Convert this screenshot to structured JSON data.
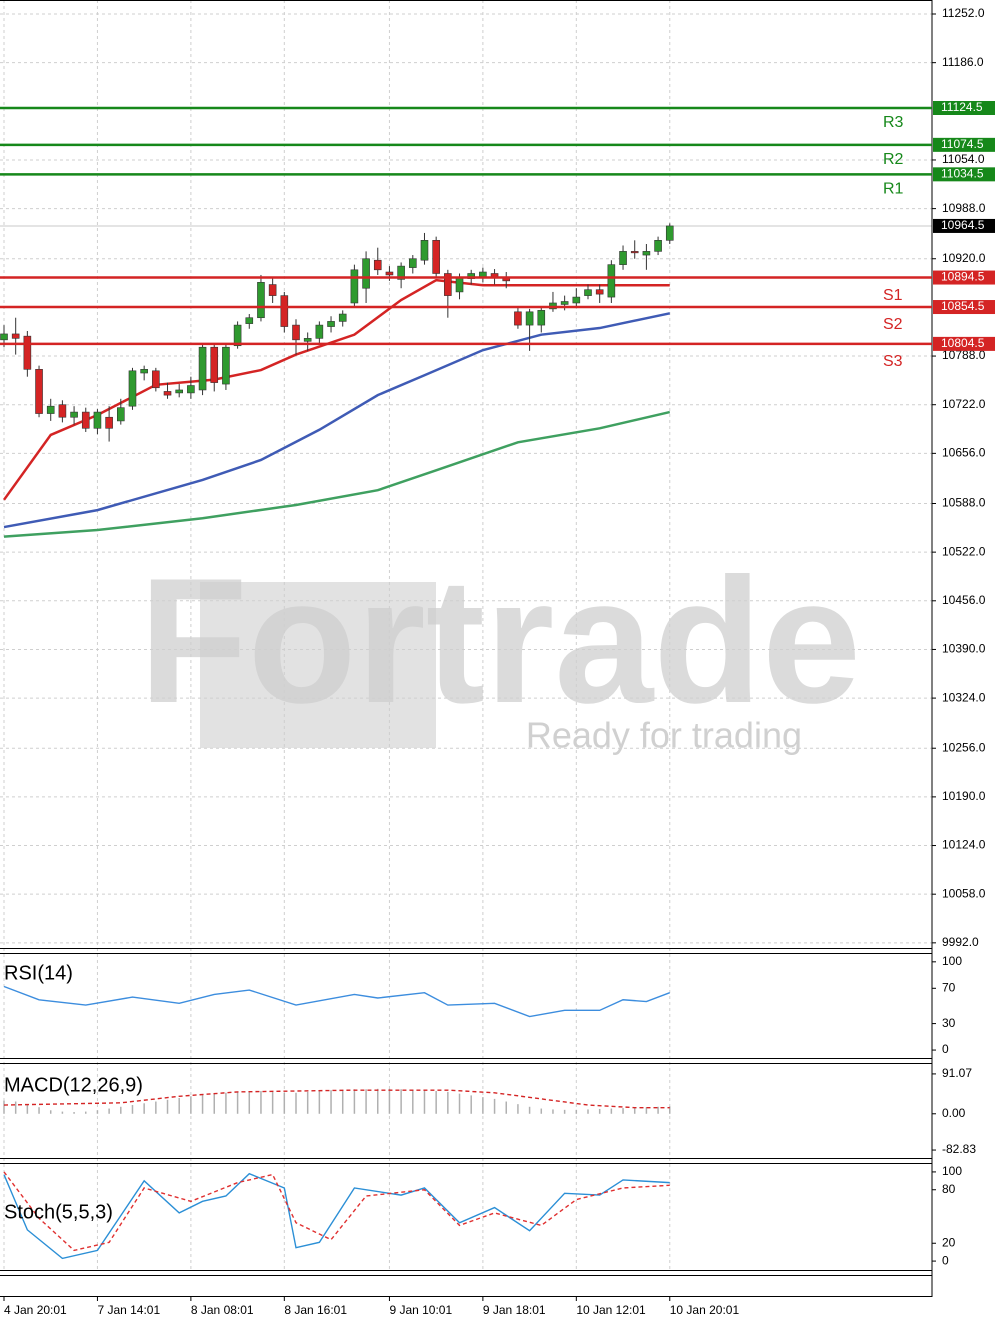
{
  "chart_data": [
    {
      "type": "candlestick",
      "watermark": {
        "title": "Fortrade",
        "subtitle": "Ready for trading"
      },
      "ylim": [
        9985,
        11271
      ],
      "yticks": [
        {
          "value": 11252,
          "label": "11252.0"
        },
        {
          "value": 11186,
          "label": "11186.0"
        },
        {
          "value": 11054,
          "label": "11054.0"
        },
        {
          "value": 10988,
          "label": "10988.0"
        },
        {
          "value": 10920,
          "label": "10920.0"
        },
        {
          "value": 10788,
          "label": "10788.0"
        },
        {
          "value": 10722,
          "label": "10722.0"
        },
        {
          "value": 10656,
          "label": "10656.0"
        },
        {
          "value": 10588,
          "label": "10588.0"
        },
        {
          "value": 10522,
          "label": "10522.0"
        },
        {
          "value": 10456,
          "label": "10456.0"
        },
        {
          "value": 10390,
          "label": "10390.0"
        },
        {
          "value": 10324,
          "label": "10324.0"
        },
        {
          "value": 10256,
          "label": "10256.0"
        },
        {
          "value": 10190,
          "label": "10190.0"
        },
        {
          "value": 10124,
          "label": "10124.0"
        },
        {
          "value": 10058,
          "label": "10058.0"
        },
        {
          "value": 9992,
          "label": "9992.0"
        }
      ],
      "xticks": [
        {
          "value": 0,
          "label": "4 Jan 20:01"
        },
        {
          "value": 8,
          "label": "7 Jan 14:01"
        },
        {
          "value": 16,
          "label": "8 Jan 08:01"
        },
        {
          "value": 24,
          "label": "8 Jan 16:01"
        },
        {
          "value": 33,
          "label": "9 Jan 10:01"
        },
        {
          "value": 41,
          "label": "9 Jan 18:01"
        },
        {
          "value": 49,
          "label": "10 Jan 12:01"
        },
        {
          "value": 57,
          "label": "10 Jan 20:01"
        }
      ],
      "grid": true,
      "up_color": "#2f9a2f",
      "down_color": "#d42424",
      "open": [
        10810,
        10818,
        10815,
        10770,
        10710,
        10722,
        10705,
        10712,
        10690,
        10705,
        10700,
        10720,
        10765,
        10768,
        10740,
        10738,
        10738,
        10742,
        10800,
        10750,
        10802,
        10832,
        10840,
        10885,
        10870,
        10830,
        10808,
        10812,
        10828,
        10835,
        10860,
        10880,
        10918,
        10902,
        10892,
        10908,
        10918,
        10945,
        10900,
        10875,
        10893,
        10895,
        10900,
        10895,
        10848,
        10830,
        10830,
        10852,
        10858,
        10860,
        10870,
        10878,
        10868,
        10912,
        10930,
        10925,
        10930,
        10945
      ],
      "close": [
        10818,
        10812,
        10770,
        10710,
        10720,
        10705,
        10712,
        10690,
        10712,
        10690,
        10718,
        10768,
        10770,
        10745,
        10735,
        10742,
        10748,
        10800,
        10752,
        10800,
        10830,
        10840,
        10888,
        10870,
        10828,
        10810,
        10812,
        10830,
        10835,
        10845,
        10905,
        10920,
        10905,
        10898,
        10910,
        10920,
        10945,
        10900,
        10870,
        10895,
        10900,
        10902,
        10895,
        10890,
        10830,
        10848,
        10850,
        10860,
        10862,
        10868,
        10878,
        10872,
        10912,
        10930,
        10928,
        10930,
        10945,
        10964.5
      ],
      "high": [
        10830,
        10840,
        10822,
        10775,
        10730,
        10728,
        10720,
        10718,
        10716,
        10720,
        10730,
        10772,
        10775,
        10772,
        10752,
        10750,
        10760,
        10805,
        10805,
        10805,
        10835,
        10845,
        10898,
        10895,
        10875,
        10838,
        10820,
        10835,
        10842,
        10850,
        10912,
        10930,
        10935,
        10910,
        10915,
        10925,
        10955,
        10950,
        10905,
        10900,
        10905,
        10908,
        10906,
        10902,
        10855,
        10852,
        10855,
        10875,
        10870,
        10880,
        10885,
        10885,
        10918,
        10938,
        10945,
        10940,
        10950,
        10968
      ],
      "low": [
        10800,
        10790,
        10760,
        10705,
        10700,
        10698,
        10695,
        10685,
        10682,
        10672,
        10695,
        10715,
        10755,
        10740,
        10730,
        10732,
        10730,
        10735,
        10740,
        10742,
        10798,
        10825,
        10835,
        10860,
        10820,
        10790,
        10795,
        10805,
        10820,
        10828,
        10855,
        10860,
        10898,
        10890,
        10880,
        10900,
        10912,
        10895,
        10840,
        10865,
        10885,
        10888,
        10885,
        10880,
        10825,
        10795,
        10820,
        10848,
        10850,
        10855,
        10865,
        10860,
        10860,
        10905,
        10920,
        10905,
        10925,
        10940
      ],
      "overlays": [
        {
          "color": "#d42424",
          "x": [
            0,
            4,
            8,
            13,
            18,
            22,
            25,
            30,
            34,
            37,
            41,
            46,
            51,
            57
          ],
          "values": [
            10593,
            10681,
            10708,
            10749,
            10756,
            10769,
            10790,
            10817,
            10864,
            10891,
            10884,
            10884,
            10884,
            10884
          ]
        },
        {
          "color": "#3f5bb5",
          "x": [
            0,
            8,
            17,
            22,
            27,
            32,
            36,
            41,
            46,
            51,
            57
          ],
          "values": [
            10556,
            10579,
            10620,
            10647,
            10688,
            10735,
            10762,
            10796,
            10817,
            10826,
            10846
          ]
        },
        {
          "color": "#3fa060",
          "x": [
            0,
            8,
            17,
            25,
            32,
            37,
            44,
            51,
            57
          ],
          "values": [
            10543,
            10552,
            10568,
            10586,
            10606,
            10633,
            10671,
            10690,
            10712
          ]
        }
      ],
      "levels": [
        {
          "label": "R3",
          "value": 11124.5,
          "color": "#16881a"
        },
        {
          "label": "R2",
          "value": 11074.5,
          "color": "#16881a"
        },
        {
          "label": "R1",
          "value": 11034.5,
          "color": "#16881a"
        },
        {
          "label": "S1",
          "value": 10894.5,
          "color": "#d42424"
        },
        {
          "label": "S2",
          "value": 10854.5,
          "color": "#d42424"
        },
        {
          "label": "S3",
          "value": 10804.5,
          "color": "#d42424"
        }
      ],
      "last_price": 10964.5
    },
    {
      "type": "line",
      "title": "RSI(14)",
      "ylim": [
        -9,
        110
      ],
      "yticks": [
        100,
        70,
        30,
        0
      ],
      "series": [
        {
          "color": "#3c8dde",
          "x": [
            0,
            3,
            7,
            11,
            15,
            18,
            21,
            25,
            30,
            32,
            36,
            38,
            42,
            45,
            48,
            51,
            53,
            55,
            57
          ],
          "values": [
            72,
            57,
            51,
            60,
            53,
            63,
            68,
            51,
            63,
            59,
            65,
            51,
            53,
            38,
            45,
            45,
            57,
            55,
            65
          ]
        }
      ]
    },
    {
      "type": "macd",
      "title": "MACD(12,26,9)",
      "ylim": [
        -101,
        116
      ],
      "yticks": [
        91.07,
        {
          "value": 0,
          "label": "0.00"
        },
        -82.83
      ],
      "histogram": {
        "color": "#b0b0b0",
        "values": [
          30,
          28,
          22,
          15,
          8,
          5,
          4,
          5,
          8,
          12,
          16,
          20,
          24,
          28,
          32,
          36,
          40,
          44,
          46,
          48,
          50,
          52,
          52,
          50,
          48,
          48,
          50,
          52,
          54,
          55,
          56,
          56,
          57,
          57,
          56,
          55,
          54,
          52,
          50,
          46,
          42,
          38,
          34,
          28,
          22,
          16,
          12,
          10,
          9,
          9,
          10,
          11,
          12,
          13,
          14,
          15,
          16,
          17
        ]
      },
      "series": [
        {
          "color": "#d42424",
          "dashed": true,
          "x": [
            0,
            10,
            15,
            20,
            30,
            38,
            42,
            46,
            50,
            54,
            57
          ],
          "values": [
            20,
            25,
            40,
            50,
            54,
            54,
            48,
            34,
            20,
            14,
            14
          ]
        }
      ]
    },
    {
      "type": "line",
      "title": "Stoch(5,5,3)",
      "ylim": [
        -10,
        110
      ],
      "yticks": [
        100,
        80,
        20,
        0
      ],
      "series": [
        {
          "color": "#2b8fd6",
          "x": [
            0,
            2,
            5,
            8,
            12,
            15,
            17,
            19,
            21,
            24,
            25,
            27,
            30,
            34,
            36,
            39,
            42,
            45,
            48,
            51,
            53,
            57
          ],
          "values": [
            97,
            35,
            3,
            12,
            90,
            54,
            67,
            73,
            98,
            82,
            15,
            21,
            82,
            74,
            82,
            43,
            60,
            34,
            76,
            74,
            91,
            88
          ]
        },
        {
          "color": "#e03030",
          "dashed": true,
          "x": [
            0,
            3,
            6,
            9,
            12,
            16,
            20,
            23,
            25,
            28,
            31,
            36,
            39,
            42,
            46,
            49,
            53,
            57
          ],
          "values": [
            100,
            48,
            12,
            21,
            82,
            67,
            88,
            97,
            43,
            24,
            73,
            80,
            40,
            54,
            40,
            69,
            82,
            85
          ]
        }
      ]
    }
  ]
}
